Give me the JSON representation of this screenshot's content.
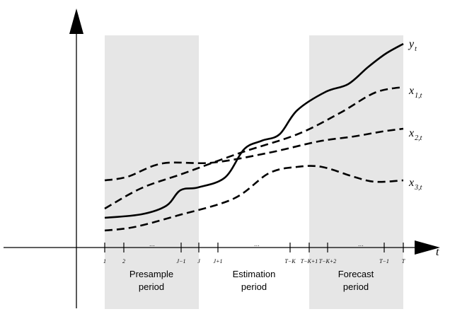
{
  "curves": [
    {
      "main": "y",
      "sub": "t"
    },
    {
      "main": "x",
      "sub": "1,t"
    },
    {
      "main": "x",
      "sub": "2,t"
    },
    {
      "main": "x",
      "sub": "3,t"
    }
  ],
  "axis_label": "t",
  "ticks": [
    "1",
    "2",
    "…",
    "J−1",
    "J",
    "J+1",
    "…",
    "T−K",
    "T−K+1",
    "T−K+2",
    "…",
    "T−1",
    "T"
  ],
  "periods": [
    {
      "lines": [
        "Presample",
        "period"
      ]
    },
    {
      "lines": [
        "Estimation",
        "period"
      ]
    },
    {
      "lines": [
        "Forecast",
        "period"
      ]
    }
  ]
}
